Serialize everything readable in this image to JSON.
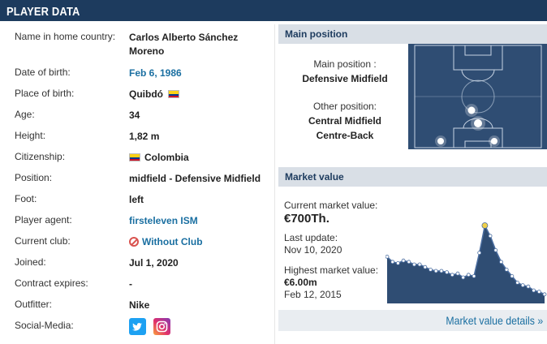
{
  "header": {
    "title": "PLAYER DATA"
  },
  "player": {
    "rows": [
      {
        "label": "Name in home country:",
        "value": "Carlos Alberto Sánchez Moreno"
      },
      {
        "label": "Date of birth:",
        "value": "Feb 6, 1986"
      },
      {
        "label": "Place of birth:",
        "value": "Quibdó"
      },
      {
        "label": "Age:",
        "value": "34"
      },
      {
        "label": "Height:",
        "value": "1,82 m"
      },
      {
        "label": "Citizenship:",
        "value": "Colombia"
      },
      {
        "label": "Position:",
        "value": "midfield - Defensive Midfield"
      },
      {
        "label": "Foot:",
        "value": "left"
      },
      {
        "label": "Player agent:",
        "value": "firsteleven ISM"
      },
      {
        "label": "Current club:",
        "value": "Without Club"
      },
      {
        "label": "Joined:",
        "value": "Jul 1, 2020"
      },
      {
        "label": "Contract expires:",
        "value": "-"
      },
      {
        "label": "Outfitter:",
        "value": "Nike"
      },
      {
        "label": "Social-Media:",
        "value": ""
      }
    ],
    "name_line1": "Carlos Alberto Sánchez",
    "name_line2": "Moreno",
    "social_icons": [
      "twitter-icon",
      "instagram-icon"
    ]
  },
  "main_position": {
    "title": "Main position",
    "main_label": "Main position :",
    "main_value": "Defensive Midfield",
    "other_label": "Other position:",
    "other_values": [
      "Central Midfield",
      "Centre-Back"
    ]
  },
  "market_value": {
    "title": "Market value",
    "current_label": "Current market value:",
    "current_value": "€700Th.",
    "update_label": "Last update:",
    "update_value": "Nov 10, 2020",
    "highest_label": "Highest market value:",
    "highest_value": "€6.00m",
    "highest_date": "Feb 12, 2015",
    "details_link": "Market value details »"
  },
  "chart_data": {
    "type": "area",
    "values": [
      3.6,
      3.2,
      3.1,
      3.3,
      3.2,
      3.0,
      3.0,
      2.8,
      2.6,
      2.5,
      2.5,
      2.4,
      2.2,
      2.3,
      2.0,
      2.2,
      2.1,
      3.9,
      6.0,
      5.2,
      4.1,
      3.2,
      2.6,
      2.1,
      1.6,
      1.4,
      1.3,
      1.0,
      0.9,
      0.7
    ],
    "peak_index": 18,
    "ylim": [
      0,
      6.5
    ],
    "colors": {
      "area": "#2f4d73",
      "line": "#4a6da0",
      "point": "#ffffff"
    }
  },
  "colors": {
    "header": "#1d3b5e",
    "link": "#1a6fa1",
    "box_header": "#d9dfe6",
    "pitch": "#2f4d73"
  }
}
